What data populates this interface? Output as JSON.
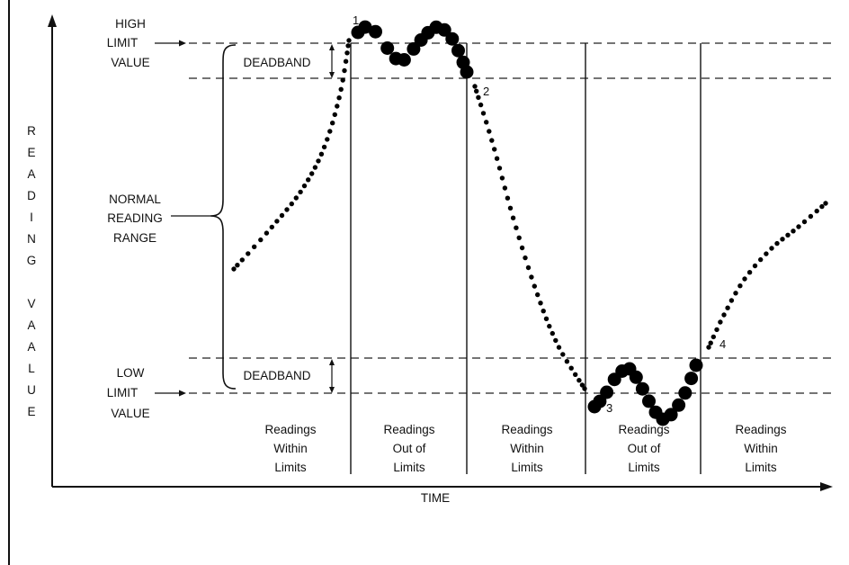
{
  "diagram": {
    "y_axis_label": [
      "R",
      "E",
      "A",
      "D",
      "I",
      "N",
      "G",
      "",
      "V",
      "A",
      "A",
      "L",
      "U",
      "E"
    ],
    "x_axis_label": "TIME",
    "high_limit": [
      "HIGH",
      "LIMIT",
      "VALUE"
    ],
    "low_limit": [
      "LOW",
      "LIMIT",
      "VALUE"
    ],
    "deadband_label": "DEADBAND",
    "normal_range": [
      "NORMAL",
      "READING",
      "RANGE"
    ],
    "regions": [
      {
        "lines": [
          "Readings",
          "Within",
          "Limits"
        ]
      },
      {
        "lines": [
          "Readings",
          "Out of",
          "Limits"
        ]
      },
      {
        "lines": [
          "Readings",
          "Within",
          "Limits"
        ]
      },
      {
        "lines": [
          "Readings",
          "Out of",
          "Limits"
        ]
      },
      {
        "lines": [
          "Readings",
          "Within",
          "Limits"
        ]
      }
    ],
    "markers": [
      "1",
      "2",
      "3",
      "4"
    ]
  }
}
